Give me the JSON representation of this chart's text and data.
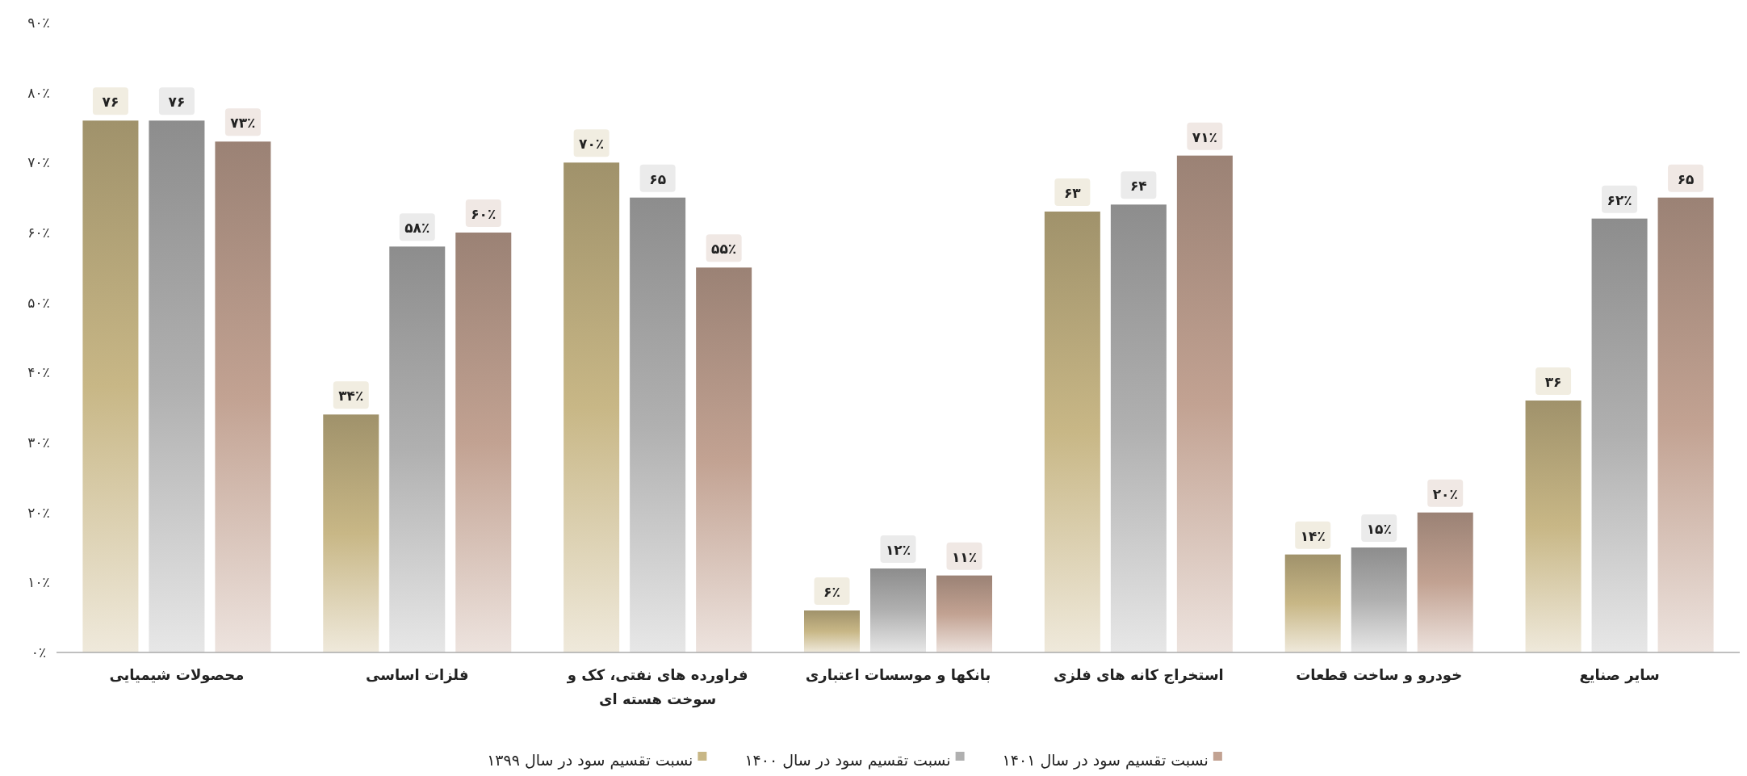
{
  "chart_data": {
    "type": "bar",
    "categories": [
      "محصولات شیمیایی",
      "فلزات اساسی",
      "فراورده های نفتی، کک و سوخت هسته ای",
      "بانکها و موسسات اعتباری",
      "استخراج کانه های فلزی",
      "خودرو و ساخت قطعات",
      "سایر صنایع"
    ],
    "series": [
      {
        "name": "نسبت تقسیم سود در سال ۱۳۹۹",
        "color": "#c8b786",
        "values": [
          76,
          34,
          70,
          6,
          63,
          14,
          36
        ],
        "value_labels": [
          "۷۶",
          "۳۴٪",
          "۷۰٪",
          "۶٪",
          "۶۳",
          "۱۴٪",
          "۳۶"
        ]
      },
      {
        "name": "نسبت تقسیم سود در سال ۱۴۰۰",
        "color": "#b0b0b0",
        "values": [
          76,
          58,
          65,
          12,
          64,
          15,
          62
        ],
        "value_labels": [
          "۷۶",
          "۵۸٪",
          "۶۵",
          "۱۲٪",
          "۶۴",
          "۱۵٪",
          "۶۲٪"
        ]
      },
      {
        "name": "نسبت تقسیم سود در سال ۱۴۰۱",
        "color": "#c2a292",
        "values": [
          73,
          60,
          55,
          11,
          71,
          20,
          65
        ],
        "value_labels": [
          "۷۳٪",
          "۶۰٪",
          "۵۵٪",
          "۱۱٪",
          "۷۱٪",
          "۲۰٪",
          "۶۵"
        ]
      }
    ],
    "ylim": [
      0,
      90
    ],
    "yticks": [
      {
        "value": 0,
        "label": "۰٪"
      },
      {
        "value": 10,
        "label": "۱۰٪"
      },
      {
        "value": 20,
        "label": "۲۰٪"
      },
      {
        "value": 30,
        "label": "۳۰٪"
      },
      {
        "value": 40,
        "label": "۴۰٪"
      },
      {
        "value": 50,
        "label": "۵۰٪"
      },
      {
        "value": 60,
        "label": "۶۰٪"
      },
      {
        "value": 70,
        "label": "۷۰٪"
      },
      {
        "value": 80,
        "label": "۸۰٪"
      },
      {
        "value": 90,
        "label": "۹۰٪"
      }
    ],
    "legend": "bottom"
  }
}
